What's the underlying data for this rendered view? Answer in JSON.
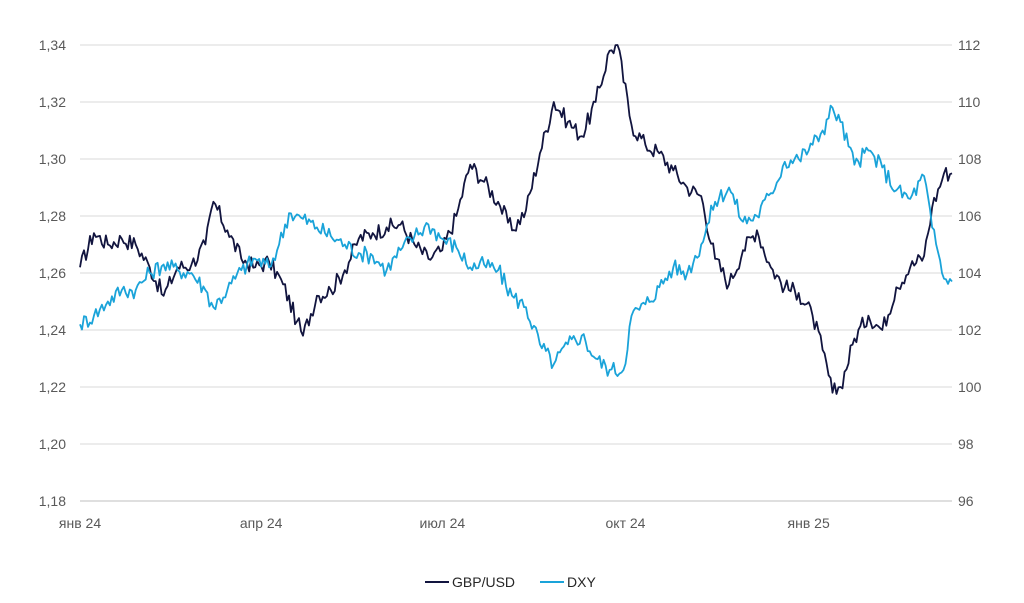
{
  "chart_data": {
    "type": "line",
    "title": "",
    "xlabel": "",
    "ylabel": "",
    "x_ticks": [
      "янв 24",
      "апр 24",
      "июл 24",
      "окт 24",
      "янв 25"
    ],
    "y_left": {
      "ylim": [
        1.18,
        1.34
      ],
      "ticks": [
        "1,18",
        "1,20",
        "1,22",
        "1,24",
        "1,26",
        "1,28",
        "1,30",
        "1,32",
        "1,34"
      ]
    },
    "y_right": {
      "ylim": [
        96,
        112
      ],
      "ticks": [
        "96",
        "98",
        "100",
        "102",
        "104",
        "106",
        "108",
        "110",
        "112"
      ]
    },
    "grid": "horizontal",
    "legend_position": "bottom",
    "x_range": [
      "2024-01-01",
      "2025-03-14"
    ],
    "series": [
      {
        "name": "GBP/USD",
        "axis": "left",
        "color": "#12153f",
        "points": [
          [
            "2024-01-01",
            1.262
          ],
          [
            "2024-01-08",
            1.274
          ],
          [
            "2024-01-15",
            1.27
          ],
          [
            "2024-01-22",
            1.272
          ],
          [
            "2024-01-29",
            1.27
          ],
          [
            "2024-02-05",
            1.262
          ],
          [
            "2024-02-12",
            1.252
          ],
          [
            "2024-02-19",
            1.262
          ],
          [
            "2024-02-26",
            1.263
          ],
          [
            "2024-03-04",
            1.27
          ],
          [
            "2024-03-08",
            1.285
          ],
          [
            "2024-03-15",
            1.275
          ],
          [
            "2024-03-22",
            1.265
          ],
          [
            "2024-03-29",
            1.262
          ],
          [
            "2024-04-05",
            1.264
          ],
          [
            "2024-04-12",
            1.256
          ],
          [
            "2024-04-19",
            1.243
          ],
          [
            "2024-04-22",
            1.238
          ],
          [
            "2024-04-29",
            1.252
          ],
          [
            "2024-05-06",
            1.254
          ],
          [
            "2024-05-13",
            1.261
          ],
          [
            "2024-05-20",
            1.272
          ],
          [
            "2024-05-27",
            1.274
          ],
          [
            "2024-06-03",
            1.276
          ],
          [
            "2024-06-10",
            1.277
          ],
          [
            "2024-06-17",
            1.27
          ],
          [
            "2024-06-24",
            1.265
          ],
          [
            "2024-07-01",
            1.268
          ],
          [
            "2024-07-08",
            1.28
          ],
          [
            "2024-07-15",
            1.298
          ],
          [
            "2024-07-22",
            1.292
          ],
          [
            "2024-07-29",
            1.285
          ],
          [
            "2024-08-05",
            1.275
          ],
          [
            "2024-08-12",
            1.282
          ],
          [
            "2024-08-19",
            1.302
          ],
          [
            "2024-08-26",
            1.32
          ],
          [
            "2024-09-02",
            1.313
          ],
          [
            "2024-09-09",
            1.308
          ],
          [
            "2024-09-16",
            1.32
          ],
          [
            "2024-09-23",
            1.338
          ],
          [
            "2024-09-27",
            1.34
          ],
          [
            "2024-10-04",
            1.312
          ],
          [
            "2024-10-11",
            1.305
          ],
          [
            "2024-10-18",
            1.302
          ],
          [
            "2024-10-25",
            1.296
          ],
          [
            "2024-11-01",
            1.29
          ],
          [
            "2024-11-08",
            1.287
          ],
          [
            "2024-11-15",
            1.265
          ],
          [
            "2024-11-22",
            1.256
          ],
          [
            "2024-11-29",
            1.268
          ],
          [
            "2024-12-06",
            1.275
          ],
          [
            "2024-12-13",
            1.262
          ],
          [
            "2024-12-20",
            1.255
          ],
          [
            "2024-12-27",
            1.253
          ],
          [
            "2025-01-03",
            1.245
          ],
          [
            "2025-01-08",
            1.233
          ],
          [
            "2025-01-13",
            1.218
          ],
          [
            "2025-01-17",
            1.22
          ],
          [
            "2025-01-24",
            1.237
          ],
          [
            "2025-01-31",
            1.245
          ],
          [
            "2025-02-07",
            1.24
          ],
          [
            "2025-02-14",
            1.255
          ],
          [
            "2025-02-21",
            1.262
          ],
          [
            "2025-02-28",
            1.266
          ],
          [
            "2025-03-04",
            1.283
          ],
          [
            "2025-03-10",
            1.295
          ],
          [
            "2025-03-14",
            1.295
          ]
        ]
      },
      {
        "name": "DXY",
        "axis": "right",
        "color": "#1aa3d9",
        "points": [
          [
            "2024-01-01",
            102.2
          ],
          [
            "2024-01-08",
            102.5
          ],
          [
            "2024-01-15",
            103.0
          ],
          [
            "2024-01-22",
            103.4
          ],
          [
            "2024-01-29",
            103.4
          ],
          [
            "2024-02-05",
            104.0
          ],
          [
            "2024-02-12",
            104.3
          ],
          [
            "2024-02-19",
            104.1
          ],
          [
            "2024-02-26",
            104.0
          ],
          [
            "2024-03-04",
            103.4
          ],
          [
            "2024-03-08",
            102.8
          ],
          [
            "2024-03-15",
            103.4
          ],
          [
            "2024-03-22",
            104.1
          ],
          [
            "2024-03-29",
            104.5
          ],
          [
            "2024-04-05",
            104.2
          ],
          [
            "2024-04-10",
            105.0
          ],
          [
            "2024-04-15",
            106.1
          ],
          [
            "2024-04-22",
            105.9
          ],
          [
            "2024-04-29",
            105.6
          ],
          [
            "2024-05-06",
            105.3
          ],
          [
            "2024-05-13",
            105.0
          ],
          [
            "2024-05-20",
            104.7
          ],
          [
            "2024-05-27",
            104.6
          ],
          [
            "2024-06-03",
            104.1
          ],
          [
            "2024-06-10",
            104.8
          ],
          [
            "2024-06-17",
            105.3
          ],
          [
            "2024-06-24",
            105.7
          ],
          [
            "2024-07-01",
            105.2
          ],
          [
            "2024-07-08",
            104.9
          ],
          [
            "2024-07-15",
            104.2
          ],
          [
            "2024-07-22",
            104.3
          ],
          [
            "2024-07-29",
            104.1
          ],
          [
            "2024-08-05",
            103.2
          ],
          [
            "2024-08-12",
            102.8
          ],
          [
            "2024-08-19",
            101.5
          ],
          [
            "2024-08-26",
            100.8
          ],
          [
            "2024-09-02",
            101.5
          ],
          [
            "2024-09-09",
            101.8
          ],
          [
            "2024-09-16",
            101.0
          ],
          [
            "2024-09-23",
            100.6
          ],
          [
            "2024-09-30",
            100.6
          ],
          [
            "2024-10-04",
            102.5
          ],
          [
            "2024-10-11",
            102.9
          ],
          [
            "2024-10-18",
            103.5
          ],
          [
            "2024-10-25",
            104.2
          ],
          [
            "2024-11-01",
            104.0
          ],
          [
            "2024-11-08",
            105.0
          ],
          [
            "2024-11-15",
            106.5
          ],
          [
            "2024-11-22",
            107.0
          ],
          [
            "2024-11-29",
            105.8
          ],
          [
            "2024-12-06",
            106.0
          ],
          [
            "2024-12-13",
            106.8
          ],
          [
            "2024-12-20",
            107.9
          ],
          [
            "2024-12-27",
            108.0
          ],
          [
            "2025-01-03",
            108.5
          ],
          [
            "2025-01-08",
            109.0
          ],
          [
            "2025-01-13",
            109.8
          ],
          [
            "2025-01-17",
            109.3
          ],
          [
            "2025-01-24",
            107.8
          ],
          [
            "2025-01-31",
            108.3
          ],
          [
            "2025-02-07",
            107.7
          ],
          [
            "2025-02-14",
            106.9
          ],
          [
            "2025-02-21",
            106.6
          ],
          [
            "2025-02-28",
            107.4
          ],
          [
            "2025-03-04",
            105.6
          ],
          [
            "2025-03-10",
            103.8
          ],
          [
            "2025-03-14",
            103.7
          ]
        ]
      }
    ]
  }
}
